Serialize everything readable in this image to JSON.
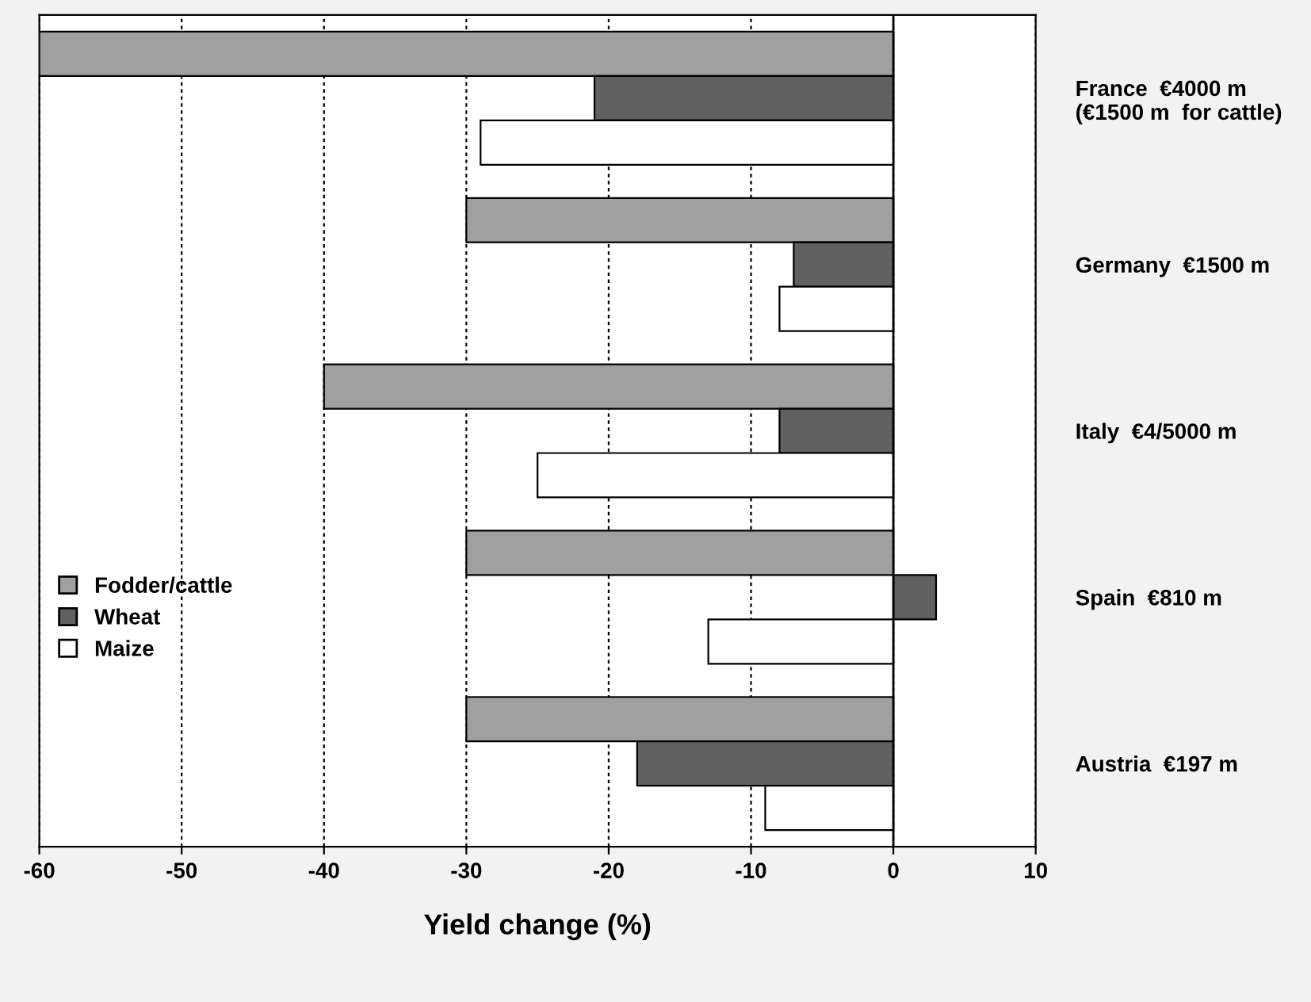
{
  "chart_data": {
    "type": "bar",
    "orientation": "horizontal",
    "xlabel": "Yield change (%)",
    "categories": [
      "France  €4000 m\n(€1500 m  for cattle)",
      "Germany  €1500 m",
      "Italy  €4/5000 m",
      "Spain  €810 m",
      "Austria  €197 m"
    ],
    "series": [
      {
        "name": "Fodder/cattle",
        "color": "#a0a0a0",
        "values": [
          -60,
          -30,
          -40,
          -30,
          -30
        ]
      },
      {
        "name": "Wheat",
        "color": "#606060",
        "values": [
          -21,
          -7,
          -8,
          3,
          -18
        ]
      },
      {
        "name": "Maize",
        "color": "#ffffff",
        "values": [
          -29,
          -8,
          -25,
          -13,
          -9
        ]
      }
    ],
    "xlim": [
      -60,
      10
    ],
    "xticks": [
      -60,
      -50,
      -40,
      -30,
      -20,
      -10,
      0,
      10
    ],
    "grid": "x",
    "legend": "bottom left"
  }
}
